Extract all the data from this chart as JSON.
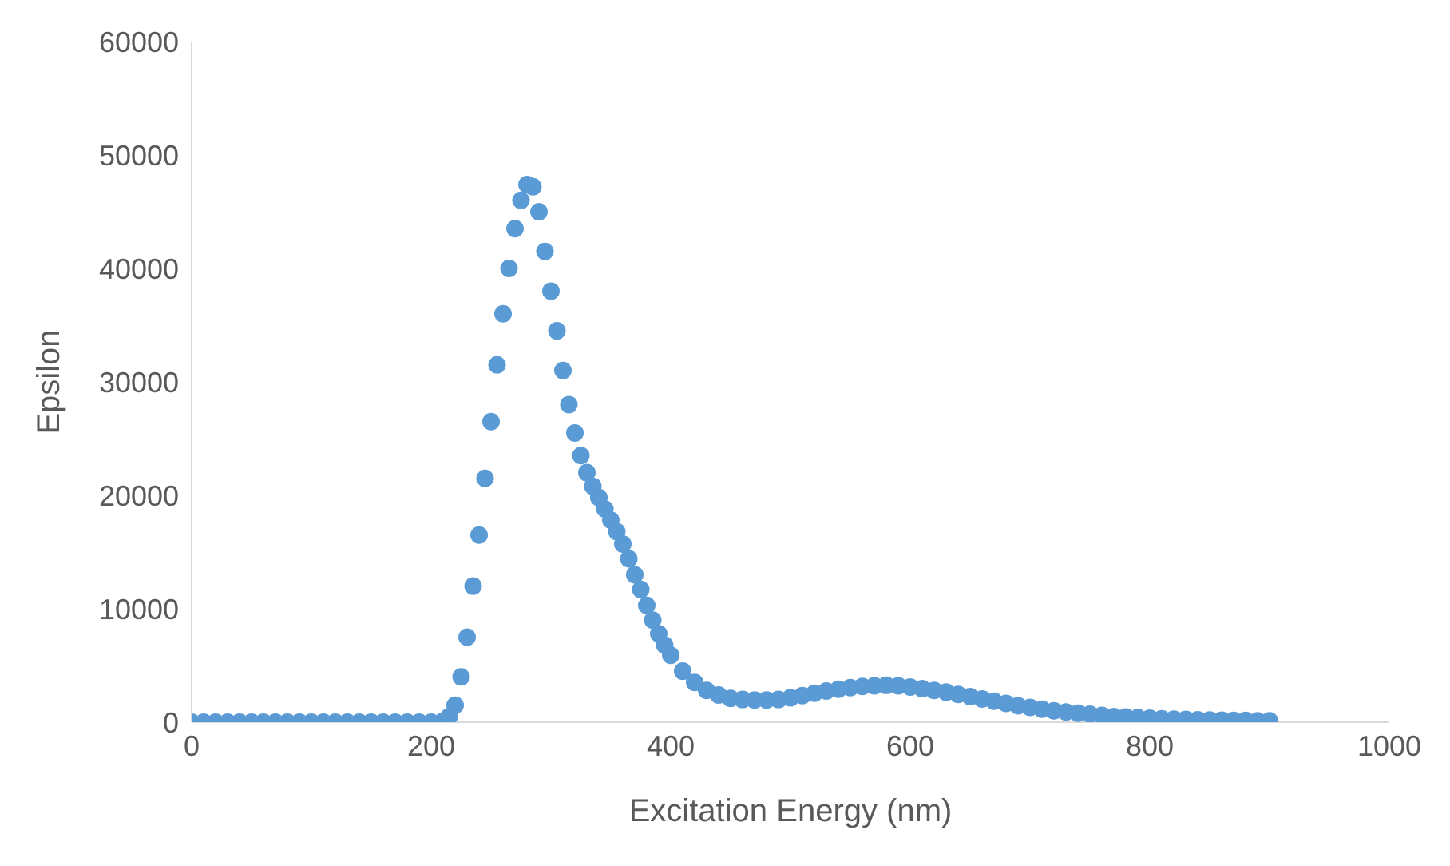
{
  "chart_data": {
    "type": "scatter",
    "xlabel": "Excitation Energy (nm)",
    "ylabel": "Epsilon",
    "xlim": [
      0,
      1000
    ],
    "xticks": [
      0,
      200,
      400,
      600,
      800,
      1000
    ],
    "ylim": [
      0,
      60000
    ],
    "yticks": [
      0,
      10000,
      20000,
      30000,
      40000,
      50000,
      60000
    ],
    "grid": false,
    "legend": false,
    "marker": "circle",
    "x": [
      0,
      10,
      20,
      30,
      40,
      50,
      60,
      70,
      80,
      90,
      100,
      110,
      120,
      130,
      140,
      150,
      160,
      170,
      180,
      190,
      200,
      210,
      215,
      220,
      225,
      230,
      235,
      240,
      245,
      250,
      255,
      260,
      265,
      270,
      275,
      280,
      285,
      290,
      295,
      300,
      305,
      310,
      315,
      320,
      325,
      330,
      335,
      340,
      345,
      350,
      355,
      360,
      365,
      370,
      375,
      380,
      385,
      390,
      395,
      400,
      410,
      420,
      430,
      440,
      450,
      460,
      470,
      480,
      490,
      500,
      510,
      520,
      530,
      540,
      550,
      560,
      570,
      580,
      590,
      600,
      610,
      620,
      630,
      640,
      650,
      660,
      670,
      680,
      690,
      700,
      710,
      720,
      730,
      740,
      750,
      760,
      770,
      780,
      790,
      800,
      810,
      820,
      830,
      840,
      850,
      860,
      870,
      880,
      890,
      900
    ],
    "series": [
      {
        "color": "#5b9bd5",
        "values": [
          0,
          0,
          0,
          0,
          0,
          0,
          0,
          0,
          0,
          0,
          0,
          0,
          0,
          0,
          0,
          0,
          0,
          0,
          0,
          0,
          0,
          100,
          500,
          1500,
          4000,
          7500,
          12000,
          16500,
          21500,
          26500,
          31500,
          36000,
          40000,
          43500,
          46000,
          47400,
          47200,
          45000,
          41500,
          38000,
          34500,
          31000,
          28000,
          25500,
          23500,
          22000,
          20800,
          19800,
          18800,
          17800,
          16800,
          15700,
          14400,
          13000,
          11700,
          10300,
          9000,
          7800,
          6800,
          5900,
          4500,
          3500,
          2800,
          2400,
          2100,
          2000,
          1950,
          1950,
          2000,
          2150,
          2350,
          2550,
          2750,
          2900,
          3050,
          3150,
          3200,
          3250,
          3200,
          3100,
          2950,
          2800,
          2650,
          2450,
          2250,
          2050,
          1850,
          1650,
          1450,
          1300,
          1150,
          1000,
          900,
          800,
          700,
          600,
          500,
          450,
          400,
          350,
          300,
          270,
          250,
          220,
          200,
          180,
          160,
          150,
          130,
          120
        ]
      }
    ]
  }
}
